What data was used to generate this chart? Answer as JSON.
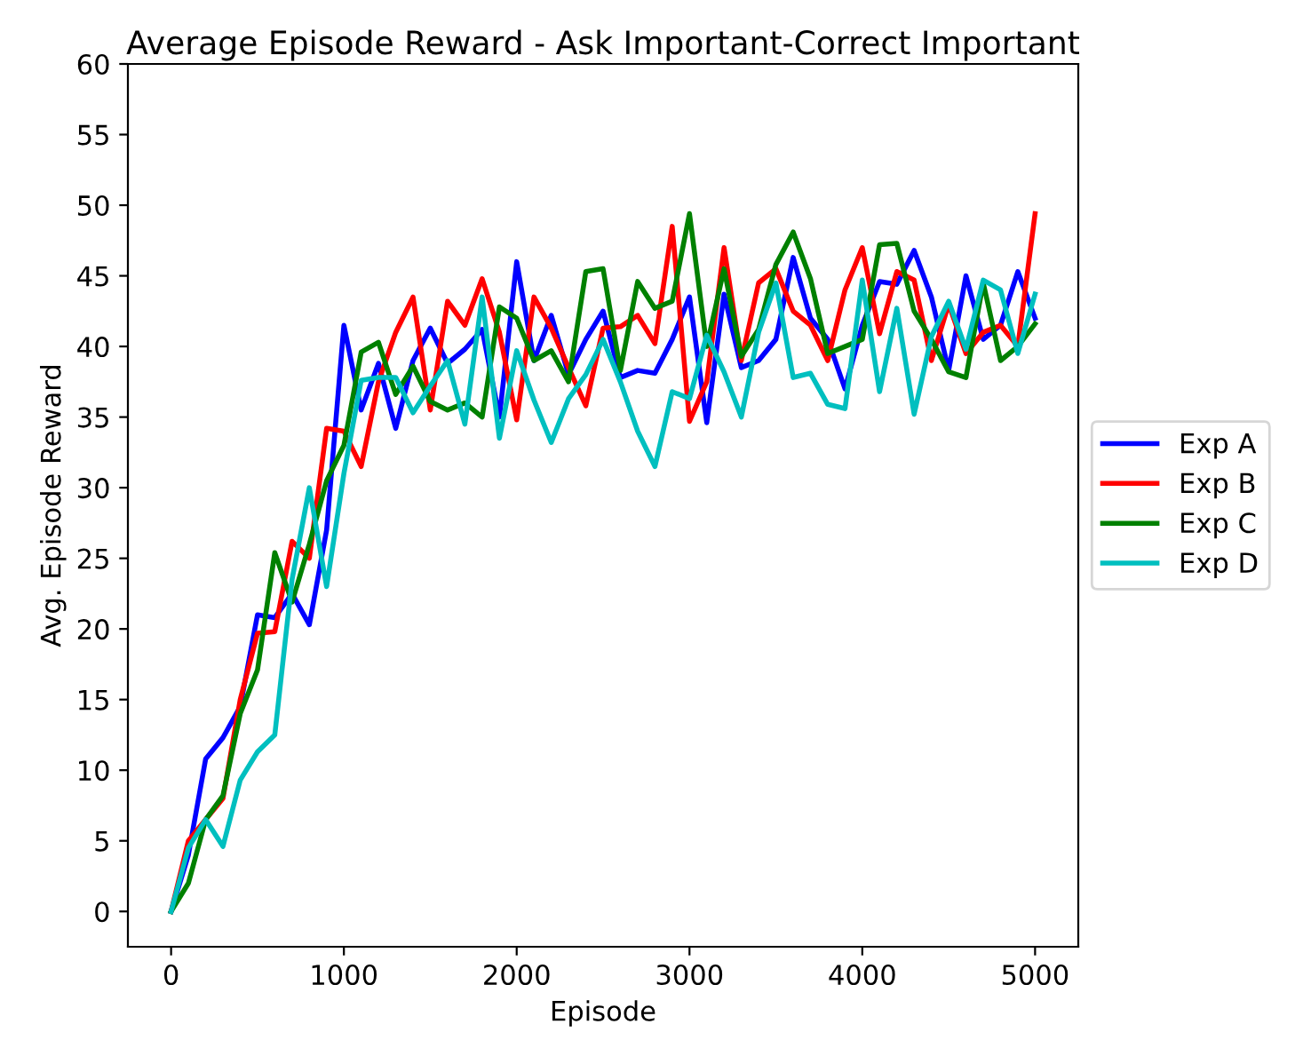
{
  "chart_data": {
    "type": "line",
    "title": "Average Episode Reward - Ask Important-Correct Important",
    "xlabel": "Episode",
    "ylabel": "Avg. Episode Reward",
    "x": [
      0,
      100,
      200,
      300,
      400,
      500,
      600,
      700,
      800,
      900,
      1000,
      1100,
      1200,
      1300,
      1400,
      1500,
      1600,
      1700,
      1800,
      1900,
      2000,
      2100,
      2200,
      2300,
      2400,
      2500,
      2600,
      2700,
      2800,
      2900,
      3000,
      3100,
      3200,
      3300,
      3400,
      3500,
      3600,
      3700,
      3800,
      3900,
      4000,
      4100,
      4200,
      4300,
      4400,
      4500,
      4600,
      4700,
      4800,
      4900,
      5000
    ],
    "series": [
      {
        "name": "Exp A",
        "color": "#0000ff",
        "values": [
          0,
          4,
          10.8,
          12.3,
          14.5,
          21,
          20.8,
          22.5,
          20.3,
          27,
          41.5,
          35.5,
          38.8,
          34.2,
          39,
          41.3,
          38.8,
          39.8,
          41.2,
          35,
          46,
          39,
          42.2,
          38,
          40.5,
          42.5,
          37.8,
          38.3,
          38.1,
          40.5,
          43.5,
          34.6,
          43.7,
          38.5,
          39,
          40.5,
          46.3,
          42,
          40.5,
          37,
          41.5,
          44.6,
          44.4,
          46.8,
          43.5,
          38.3,
          45,
          40.5,
          41.5,
          45.3,
          42
        ]
      },
      {
        "name": "Exp B",
        "color": "#ff0000",
        "values": [
          0,
          5,
          6.5,
          8,
          15,
          19.7,
          19.8,
          26.2,
          25,
          34.2,
          34,
          31.5,
          37.5,
          41,
          43.5,
          35.5,
          43.2,
          41.5,
          44.8,
          41,
          34.8,
          43.5,
          41.3,
          38.5,
          35.8,
          41.3,
          41.4,
          42.2,
          40.2,
          48.5,
          34.7,
          37.5,
          47,
          39,
          44.5,
          45.5,
          42.5,
          41.5,
          39,
          44,
          47,
          40.9,
          45.3,
          44.7,
          39,
          43,
          39.5,
          41,
          41.5,
          40,
          49.4
        ]
      },
      {
        "name": "Exp C",
        "color": "#008000",
        "values": [
          0,
          2,
          6.5,
          8.2,
          14,
          17.1,
          25.4,
          21.9,
          26,
          30.5,
          33,
          39.6,
          40.3,
          36.6,
          38.6,
          36.1,
          35.5,
          36,
          35,
          42.8,
          42,
          39,
          39.7,
          37.5,
          45.3,
          45.5,
          38.3,
          44.6,
          42.7,
          43.2,
          49.4,
          40,
          45.5,
          39.3,
          41.2,
          45.8,
          48.1,
          44.8,
          39.5,
          40,
          40.5,
          47.2,
          47.3,
          42.5,
          40.5,
          38.2,
          37.8,
          44.5,
          39,
          40,
          41.6
        ]
      },
      {
        "name": "Exp D",
        "color": "#00bfbf",
        "values": [
          0,
          4.5,
          6.5,
          4.6,
          9.3,
          11.3,
          12.5,
          23.5,
          30,
          23,
          31,
          37.6,
          37.8,
          37.8,
          35.3,
          37.2,
          39,
          34.5,
          43.5,
          33.5,
          39.7,
          36.2,
          33.2,
          36.3,
          38,
          40.5,
          37.5,
          34,
          31.5,
          36.8,
          36.3,
          40.8,
          38.2,
          35,
          41,
          44.5,
          37.8,
          38.1,
          35.9,
          35.6,
          44.7,
          36.8,
          42.7,
          35.2,
          40.7,
          43.2,
          39.8,
          44.7,
          44,
          39.5,
          43.7
        ]
      }
    ],
    "xlim": [
      -250,
      5250
    ],
    "xticks": [
      0,
      1000,
      2000,
      3000,
      4000,
      5000
    ],
    "ylim": [
      -2.5,
      60
    ],
    "yticks": [
      0,
      5,
      10,
      15,
      20,
      25,
      30,
      35,
      40,
      45,
      50,
      55,
      60
    ],
    "grid": false,
    "legend": "right",
    "line_style": "solid",
    "marker": "none"
  }
}
